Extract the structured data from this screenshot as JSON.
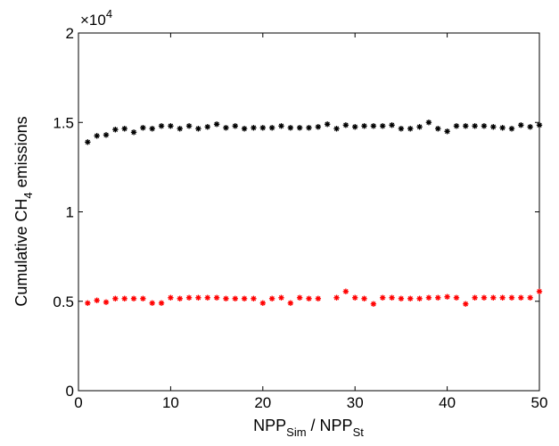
{
  "chart_data": {
    "type": "scatter",
    "xlabel": {
      "main1": "NPP",
      "sub1": "Sim",
      "mid": " / NPP",
      "sub2": "St"
    },
    "ylabel": {
      "main": "Cumulative CH",
      "sub": "4",
      "tail": " emissions"
    },
    "exponent": {
      "base": "×10",
      "power": "4"
    },
    "xlim": [
      0,
      50
    ],
    "ylim": [
      0,
      20000
    ],
    "x_ticks": [
      0,
      10,
      20,
      30,
      40,
      50
    ],
    "y_ticks": [
      0,
      0.5,
      1,
      1.5,
      2
    ],
    "y_tick_labels": [
      "0",
      "0.5",
      "1",
      "1.5",
      "2"
    ],
    "marker": "*",
    "grid": false,
    "series": [
      {
        "color": "#000000",
        "x": [
          1,
          2,
          3,
          4,
          5,
          6,
          7,
          8,
          9,
          10,
          11,
          12,
          13,
          14,
          15,
          16,
          17,
          18,
          19,
          20,
          21,
          22,
          23,
          24,
          25,
          26,
          27,
          28,
          29,
          30,
          31,
          32,
          33,
          34,
          35,
          36,
          37,
          38,
          39,
          40,
          41,
          42,
          43,
          44,
          45,
          46,
          47,
          48,
          49,
          50
        ],
        "y": [
          13900,
          14250,
          14300,
          14600,
          14650,
          14450,
          14700,
          14650,
          14800,
          14800,
          14650,
          14800,
          14650,
          14750,
          14900,
          14700,
          14800,
          14650,
          14700,
          14700,
          14700,
          14800,
          14700,
          14700,
          14700,
          14750,
          14900,
          14650,
          14850,
          14750,
          14800,
          14800,
          14800,
          14850,
          14650,
          14650,
          14750,
          15000,
          14650,
          14500,
          14800,
          14800,
          14800,
          14800,
          14750,
          14700,
          14650,
          14850,
          14750,
          14850
        ]
      },
      {
        "color": "#ff0000",
        "x": [
          1,
          2,
          3,
          4,
          5,
          6,
          7,
          8,
          9,
          10,
          11,
          12,
          13,
          14,
          15,
          16,
          17,
          18,
          19,
          20,
          21,
          22,
          23,
          24,
          25,
          26,
          27,
          28,
          29,
          30,
          31,
          32,
          33,
          34,
          35,
          36,
          37,
          38,
          39,
          40,
          41,
          42,
          43,
          44,
          45,
          46,
          47,
          48,
          49,
          50
        ],
        "y": [
          4900,
          5050,
          4950,
          5150,
          5150,
          5150,
          5150,
          4900,
          4900,
          5200,
          5150,
          5200,
          5200,
          5200,
          5200,
          5150,
          5150,
          5150,
          5150,
          4900,
          5150,
          5200,
          4900,
          5200,
          5150,
          5150,
          null,
          5200,
          5550,
          5200,
          5150,
          4850,
          5200,
          5200,
          5150,
          5150,
          5150,
          5200,
          5200,
          5250,
          5200,
          4850,
          5200,
          5200,
          5200,
          5200,
          5200,
          5200,
          5200,
          5550
        ]
      }
    ]
  }
}
